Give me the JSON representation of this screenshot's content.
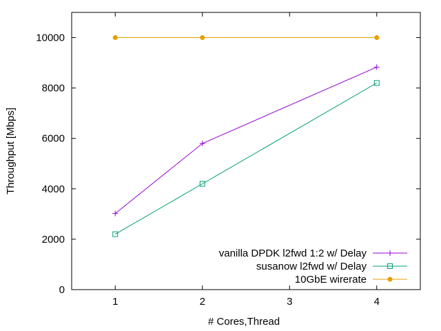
{
  "chart_data": {
    "type": "line",
    "title": "",
    "xlabel": "# Cores,Thread",
    "ylabel": "Throughput [Mbps]",
    "xlim": [
      0.5,
      4.5
    ],
    "ylim": [
      0,
      11000
    ],
    "xticks": [
      1,
      2,
      3,
      4
    ],
    "yticks": [
      0,
      2000,
      4000,
      6000,
      8000,
      10000
    ],
    "grid": false,
    "legend": "bottom-right",
    "series": [
      {
        "name": "vanilla DPDK l2fwd 1:2 w/ Delay",
        "color": "#9400d3",
        "marker": "plus",
        "x": [
          1,
          2,
          4
        ],
        "y": [
          3020,
          5800,
          8830
        ]
      },
      {
        "name": "susanow l2fwd w/ Delay",
        "color": "#009e73",
        "marker": "open-square",
        "x": [
          1,
          2,
          4
        ],
        "y": [
          2200,
          4200,
          8200
        ]
      },
      {
        "name": "10GbE wirerate",
        "color": "#e69f00",
        "marker": "filled-circle",
        "x": [
          1,
          2,
          4
        ],
        "y": [
          10000,
          10000,
          10000
        ]
      }
    ]
  }
}
